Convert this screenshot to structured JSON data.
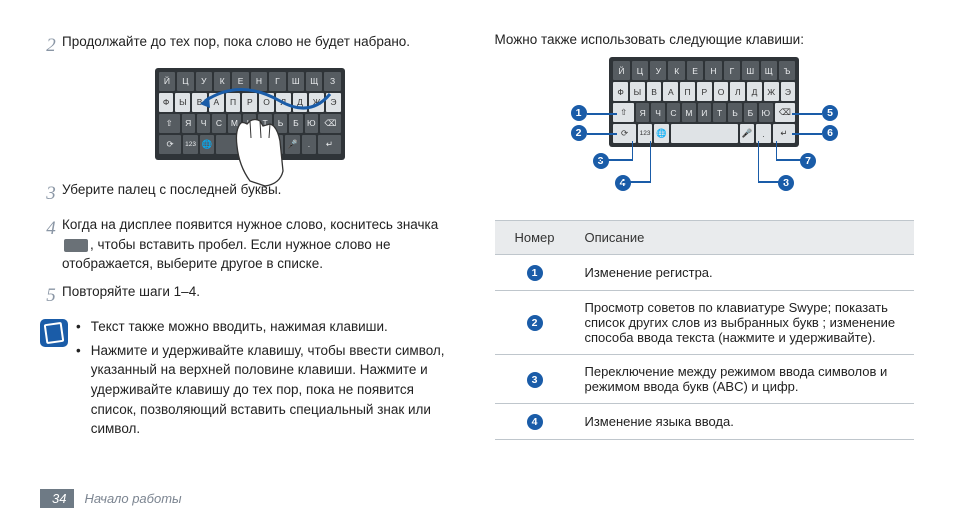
{
  "left": {
    "step2": "Продолжайте до тех пор, пока слово не будет набрано.",
    "step3": "Уберите палец с последней буквы.",
    "step4_a": "Когда на дисплее появится нужное слово, коснитесь значка ",
    "step4_b": ", чтобы вставить пробел. Если нужное слово не отображается, выберите другое в списке.",
    "step5": "Повторяйте шаги 1–4.",
    "note1": "Текст также можно вводить, нажимая клавиши.",
    "note2": "Нажмите и удерживайте клавишу, чтобы ввести символ, указанный на верхней половине клавиши. Нажмите и удерживайте клавишу до тех пор, пока не появится список, позволяющий вставить специальный знак или символ.",
    "kb": {
      "row1": [
        "Й",
        "Ц",
        "У",
        "К",
        "Е",
        "Н",
        "Г",
        "Ш",
        "Щ",
        "З"
      ],
      "row2": [
        "Ф",
        "Ы",
        "В",
        "А",
        "П",
        "Р",
        "О",
        "Л",
        "Д",
        "Ж",
        "Э"
      ],
      "row3": [
        "Я",
        "Ч",
        "С",
        "М",
        "И",
        "Т",
        "Ь",
        "Б",
        "Ю"
      ]
    }
  },
  "right": {
    "intro": "Можно также использовать следующие клавиши:",
    "kb": {
      "row1": [
        "Й",
        "Ц",
        "У",
        "К",
        "Е",
        "Н",
        "Г",
        "Ш",
        "Щ",
        "Ъ"
      ],
      "row2": [
        "Ф",
        "Ы",
        "В",
        "А",
        "П",
        "Р",
        "О",
        "Л",
        "Д",
        "Ж",
        "Э"
      ],
      "row3": [
        "Я",
        "Ч",
        "С",
        "М",
        "И",
        "Т",
        "Ь",
        "Б",
        "Ю"
      ]
    },
    "table": {
      "col1": "Номер",
      "col2": "Описание",
      "rows": [
        {
          "n": "1",
          "d": "Изменение регистра."
        },
        {
          "n": "2",
          "d": "Просмотр советов по клавиатуре Swype; показать список других слов из выбранных букв ; изменение способа ввода текста (нажмите и удерживайте)."
        },
        {
          "n": "3",
          "d": "Переключение между режимом ввода символов и режимом ввода букв (ABC) и цифр."
        },
        {
          "n": "4",
          "d": "Изменение языка ввода."
        }
      ]
    }
  },
  "footer": {
    "page": "34",
    "section": "Начало работы"
  },
  "colors": {
    "accent": "#1a5ca8",
    "key": "#565c61",
    "key_light": "#dfe3e6"
  }
}
